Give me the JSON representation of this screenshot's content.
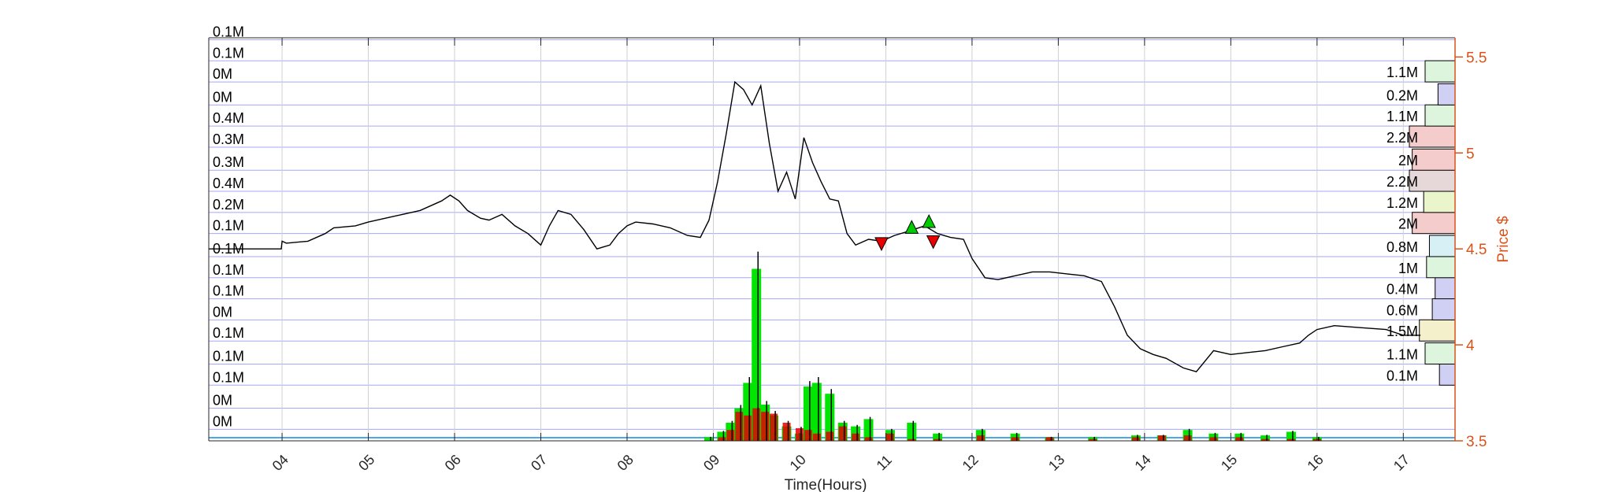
{
  "colors": {
    "price_line": "#000000",
    "grid": "#8080ff",
    "axis_right": "#d95319",
    "buy_volume": "#00e600",
    "sell_volume": "#e60000",
    "vbp_green": "#ddf5dd",
    "vbp_blue": "#d0d0f5",
    "vbp_red": "#f5cccc",
    "vbp_mixed": "#e6d8d8",
    "vbp_yellow": "#f5f0cc",
    "vbp_cyan": "#d6f0f5",
    "marker_up": "#00cc00",
    "marker_down": "#e60000"
  },
  "chart_data": {
    "type": "line",
    "xlabel": "Time(Hours)",
    "ylabel_right": "Price $",
    "x_ticks": [
      "04",
      "05",
      "06",
      "07",
      "08",
      "09",
      "10",
      "11",
      "12",
      "13",
      "14",
      "15",
      "16",
      "17"
    ],
    "xlim": [
      3.15,
      17.6
    ],
    "ylim": [
      3.5,
      5.6
    ],
    "y_ticks": [
      3.5,
      4,
      4.5,
      5,
      5.5
    ],
    "y_tick_labels": [
      "3.5",
      "4",
      "4.5",
      "5",
      "5.5"
    ],
    "grid": "horizontal bands at price levels, vertical at hours",
    "left_band_labels": [
      "0M",
      "0M",
      "0.1M",
      "0.1M",
      "0.1M",
      "0M",
      "0.1M",
      "0.1M",
      "0.1M",
      "0.1M",
      "0.2M",
      "0.4M",
      "0.3M",
      "0.3M",
      "0.4M",
      "0M",
      "0M",
      "0.1M",
      "0.1M"
    ],
    "left_band_prices": [
      3.56,
      3.67,
      3.79,
      3.9,
      4.02,
      4.13,
      4.24,
      4.35,
      4.46,
      4.58,
      4.69,
      4.8,
      4.91,
      5.03,
      5.14,
      5.25,
      5.37,
      5.48,
      5.59
    ],
    "volume_by_price": [
      {
        "price": 3.79,
        "label": "0.1M",
        "value": 0.1,
        "color": "blue"
      },
      {
        "price": 3.9,
        "label": "1.1M",
        "value": 1.1,
        "color": "green"
      },
      {
        "price": 4.02,
        "label": "1.5M",
        "value": 1.5,
        "color": "yellow"
      },
      {
        "price": 4.13,
        "label": "0.6M",
        "value": 0.6,
        "color": "blue"
      },
      {
        "price": 4.24,
        "label": "0.4M",
        "value": 0.4,
        "color": "blue"
      },
      {
        "price": 4.35,
        "label": "1M",
        "value": 1.0,
        "color": "green"
      },
      {
        "price": 4.46,
        "label": "0.8M",
        "value": 0.8,
        "color": "cyan"
      },
      {
        "price": 4.58,
        "label": "2M",
        "value": 2.0,
        "color": "red"
      },
      {
        "price": 4.69,
        "label": "1.2M",
        "value": 1.2,
        "color": "yellow-green"
      },
      {
        "price": 4.8,
        "label": "2.2M",
        "value": 2.2,
        "color": "mixed"
      },
      {
        "price": 4.91,
        "label": "2M",
        "value": 2.0,
        "color": "red"
      },
      {
        "price": 5.03,
        "label": "2.2M",
        "value": 2.2,
        "color": "red"
      },
      {
        "price": 5.14,
        "label": "1.1M",
        "value": 1.1,
        "color": "green"
      },
      {
        "price": 5.25,
        "label": "0.2M",
        "value": 0.2,
        "color": "blue"
      },
      {
        "price": 5.37,
        "label": "1.1M",
        "value": 1.1,
        "color": "green"
      }
    ],
    "price_series": {
      "name": "Price",
      "x": [
        3.15,
        3.99,
        4.0,
        4.05,
        4.3,
        4.5,
        4.6,
        4.85,
        5.0,
        5.3,
        5.6,
        5.85,
        5.95,
        6.05,
        6.15,
        6.3,
        6.4,
        6.55,
        6.7,
        6.85,
        7.0,
        7.1,
        7.2,
        7.35,
        7.5,
        7.65,
        7.8,
        7.9,
        8.0,
        8.1,
        8.3,
        8.5,
        8.7,
        8.85,
        8.95,
        9.05,
        9.15,
        9.25,
        9.35,
        9.45,
        9.55,
        9.65,
        9.75,
        9.85,
        9.95,
        10.05,
        10.15,
        10.25,
        10.35,
        10.45,
        10.55,
        10.65,
        10.8,
        10.95,
        11.1,
        11.25,
        11.45,
        11.6,
        11.75,
        11.9,
        12.0,
        12.15,
        12.3,
        12.5,
        12.7,
        12.9,
        13.1,
        13.3,
        13.5,
        13.65,
        13.8,
        13.95,
        14.1,
        14.25,
        14.45,
        14.6,
        14.8,
        15.0,
        15.2,
        15.4,
        15.6,
        15.8,
        15.9,
        16.0,
        16.2,
        16.5,
        16.8,
        17.0,
        17.2
      ],
      "y": [
        4.5,
        4.5,
        4.54,
        4.53,
        4.54,
        4.58,
        4.61,
        4.62,
        4.64,
        4.67,
        4.7,
        4.75,
        4.78,
        4.75,
        4.7,
        4.66,
        4.65,
        4.68,
        4.62,
        4.58,
        4.52,
        4.62,
        4.7,
        4.68,
        4.6,
        4.5,
        4.52,
        4.58,
        4.62,
        4.64,
        4.63,
        4.61,
        4.57,
        4.56,
        4.65,
        4.85,
        5.1,
        5.37,
        5.33,
        5.25,
        5.35,
        5.05,
        4.8,
        4.9,
        4.76,
        5.08,
        4.95,
        4.85,
        4.76,
        4.75,
        4.58,
        4.52,
        4.55,
        4.54,
        4.57,
        4.59,
        4.62,
        4.58,
        4.56,
        4.55,
        4.45,
        4.35,
        4.34,
        4.36,
        4.38,
        4.38,
        4.37,
        4.36,
        4.33,
        4.2,
        4.05,
        3.98,
        3.95,
        3.93,
        3.88,
        3.86,
        3.97,
        3.95,
        3.96,
        3.97,
        3.99,
        4.01,
        4.05,
        4.08,
        4.1,
        4.09,
        4.08,
        4.05,
        4.05
      ]
    },
    "volume_series": {
      "x": [
        8.95,
        9.1,
        9.2,
        9.3,
        9.4,
        9.5,
        9.6,
        9.7,
        9.85,
        10.0,
        10.1,
        10.2,
        10.35,
        10.5,
        10.65,
        10.8,
        11.05,
        11.3,
        11.6,
        12.1,
        12.5,
        12.9,
        13.4,
        13.9,
        14.2,
        14.5,
        14.8,
        15.1,
        15.4,
        15.7,
        16.0
      ],
      "buy": [
        0.02,
        0.05,
        0.1,
        0.18,
        0.32,
        0.95,
        0.2,
        0.14,
        0.08,
        0.04,
        0.3,
        0.32,
        0.26,
        0.1,
        0.08,
        0.12,
        0.06,
        0.1,
        0.04,
        0.06,
        0.04,
        0.02,
        0.02,
        0.03,
        0.03,
        0.06,
        0.04,
        0.04,
        0.03,
        0.05,
        0.02
      ],
      "sell": [
        0.0,
        0.02,
        0.06,
        0.16,
        0.14,
        0.18,
        0.16,
        0.15,
        0.1,
        0.07,
        0.06,
        0.04,
        0.05,
        0.08,
        0.04,
        0.02,
        0.04,
        0.01,
        0.01,
        0.03,
        0.02,
        0.02,
        0.01,
        0.02,
        0.03,
        0.03,
        0.02,
        0.02,
        0.01,
        0.01,
        0.01
      ]
    },
    "markers": [
      {
        "type": "sell",
        "x": 10.95,
        "y": 4.53
      },
      {
        "type": "buy",
        "x": 11.3,
        "y": 4.61
      },
      {
        "type": "buy",
        "x": 11.5,
        "y": 4.64
      },
      {
        "type": "sell",
        "x": 11.55,
        "y": 4.54
      }
    ]
  }
}
